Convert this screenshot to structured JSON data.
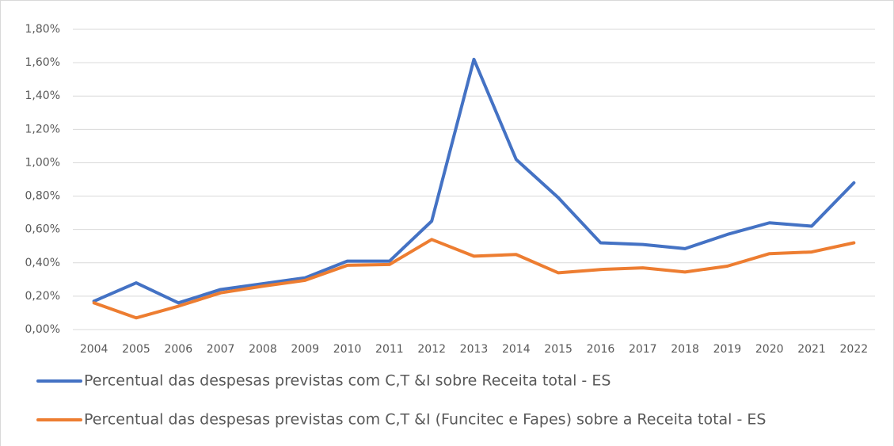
{
  "chart_data": {
    "type": "line",
    "categories": [
      "2004",
      "2005",
      "2006",
      "2007",
      "2008",
      "2009",
      "2010",
      "2011",
      "2012",
      "2013",
      "2014",
      "2015",
      "2016",
      "2017",
      "2018",
      "2019",
      "2020",
      "2021",
      "2022"
    ],
    "series": [
      {
        "name": "Percentual das despesas previstas com C,T &I sobre Receita total - ES",
        "color": "#4472c4",
        "values": [
          0.17,
          0.28,
          0.16,
          0.24,
          0.275,
          0.31,
          0.41,
          0.41,
          0.65,
          1.62,
          1.02,
          0.79,
          0.52,
          0.51,
          0.485,
          0.57,
          0.64,
          0.62,
          0.88
        ]
      },
      {
        "name": "Percentual das despesas previstas com C,T &I (Funcitec e Fapes) sobre a Receita total - ES",
        "color": "#ed7d31",
        "values": [
          0.16,
          0.07,
          0.14,
          0.22,
          0.26,
          0.295,
          0.385,
          0.39,
          0.54,
          0.44,
          0.45,
          0.34,
          0.36,
          0.37,
          0.345,
          0.38,
          0.455,
          0.465,
          0.52
        ]
      }
    ],
    "ylim": [
      0,
      1.8
    ],
    "yticks": [
      {
        "value": 0,
        "label": "0,00%"
      },
      {
        "value": 0.2,
        "label": "0,20%"
      },
      {
        "value": 0.4,
        "label": "0,40%"
      },
      {
        "value": 0.6,
        "label": "0,60%"
      },
      {
        "value": 0.8,
        "label": "0,80%"
      },
      {
        "value": 1.0,
        "label": "1,00%"
      },
      {
        "value": 1.2,
        "label": "1,20%"
      },
      {
        "value": 1.4,
        "label": "1,40%"
      },
      {
        "value": 1.6,
        "label": "1,60%"
      },
      {
        "value": 1.8,
        "label": "1,80%"
      }
    ],
    "grid": true,
    "legend": "bottom"
  }
}
